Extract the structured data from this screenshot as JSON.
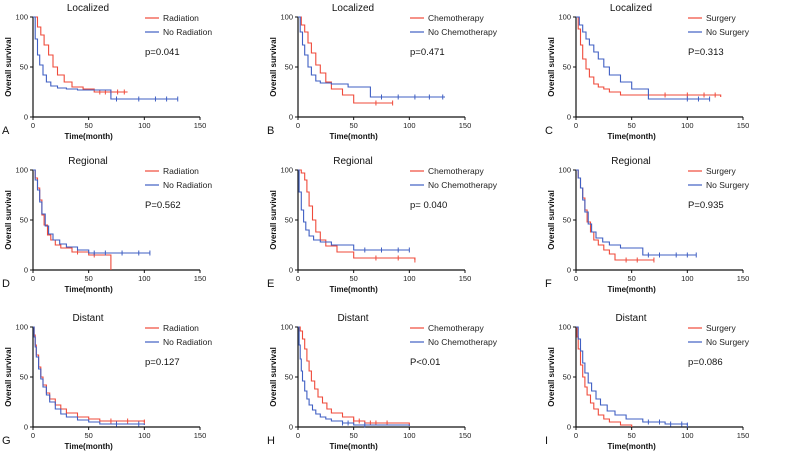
{
  "colors": {
    "treated": "#ef4a3a",
    "untreated": "#3f5fc3",
    "axis": "#111111"
  },
  "chart_data": [
    {
      "type": "line",
      "panel": "A",
      "title": "Localized",
      "xlabel": "Time(month)",
      "ylabel": "Overall survival",
      "xlim": [
        0,
        150
      ],
      "ylim": [
        0,
        100
      ],
      "xticks": [
        0,
        50,
        100,
        150
      ],
      "yticks": [
        0,
        50,
        100
      ],
      "pvalue": "p=0.041",
      "series": [
        {
          "name": "Radiation",
          "role": "treated",
          "x": [
            0,
            4,
            7,
            10,
            14,
            18,
            22,
            28,
            35,
            45,
            55,
            85
          ],
          "y": [
            100,
            90,
            82,
            72,
            62,
            50,
            42,
            35,
            30,
            28,
            25,
            25
          ],
          "censor_x": [
            60,
            65,
            70,
            76,
            82
          ]
        },
        {
          "name": "No Radiation",
          "role": "untreated",
          "x": [
            0,
            2,
            4,
            6,
            9,
            12,
            16,
            22,
            30,
            40,
            70,
            130
          ],
          "y": [
            100,
            78,
            62,
            52,
            42,
            35,
            31,
            29,
            28,
            27,
            18,
            18
          ],
          "censor_x": [
            75,
            95,
            110,
            120,
            130
          ]
        }
      ]
    },
    {
      "type": "line",
      "panel": "B",
      "title": "Localized",
      "xlabel": "Time(month)",
      "ylabel": "Overall survival",
      "xlim": [
        0,
        150
      ],
      "ylim": [
        0,
        100
      ],
      "xticks": [
        0,
        50,
        100,
        150
      ],
      "yticks": [
        0,
        50,
        100
      ],
      "pvalue": "p=0.471",
      "series": [
        {
          "name": "Chemotherapy",
          "role": "treated",
          "x": [
            0,
            3,
            6,
            9,
            12,
            16,
            20,
            25,
            30,
            40,
            50,
            85
          ],
          "y": [
            100,
            92,
            85,
            74,
            64,
            52,
            44,
            35,
            28,
            22,
            14,
            14
          ],
          "censor_x": [
            70,
            85
          ]
        },
        {
          "name": "No Chemotherapy",
          "role": "untreated",
          "x": [
            0,
            2,
            4,
            6,
            9,
            12,
            16,
            20,
            30,
            45,
            65,
            132
          ],
          "y": [
            100,
            85,
            72,
            62,
            50,
            42,
            36,
            34,
            33,
            30,
            20,
            20
          ],
          "censor_x": [
            75,
            90,
            105,
            118,
            130
          ]
        }
      ]
    },
    {
      "type": "line",
      "panel": "C",
      "title": "Localized",
      "xlabel": "Time(month)",
      "ylabel": "Overall survival",
      "xlim": [
        0,
        150
      ],
      "ylim": [
        0,
        100
      ],
      "xticks": [
        0,
        50,
        100,
        150
      ],
      "yticks": [
        0,
        50,
        100
      ],
      "pvalue": "P=0.313",
      "series": [
        {
          "name": "Surgery",
          "role": "treated",
          "x": [
            0,
            2,
            4,
            6,
            9,
            12,
            16,
            20,
            25,
            30,
            40,
            130
          ],
          "y": [
            100,
            88,
            72,
            58,
            48,
            40,
            33,
            30,
            28,
            25,
            22,
            20
          ],
          "censor_x": [
            80,
            100,
            115,
            125
          ]
        },
        {
          "name": "No Surgery",
          "role": "untreated",
          "x": [
            0,
            3,
            6,
            9,
            12,
            16,
            20,
            25,
            30,
            40,
            50,
            65,
            120
          ],
          "y": [
            100,
            92,
            85,
            78,
            72,
            65,
            58,
            50,
            42,
            35,
            28,
            18,
            18
          ],
          "censor_x": [
            100,
            110,
            120
          ]
        }
      ]
    },
    {
      "type": "line",
      "panel": "D",
      "title": "Regional",
      "xlabel": "Time(month)",
      "ylabel": "Overall survival",
      "xlim": [
        0,
        150
      ],
      "ylim": [
        0,
        100
      ],
      "xticks": [
        0,
        50,
        100,
        150
      ],
      "yticks": [
        0,
        50,
        100
      ],
      "pvalue": "P=0.562",
      "series": [
        {
          "name": "Radiation",
          "role": "treated",
          "x": [
            0,
            2,
            4,
            6,
            8,
            10,
            13,
            16,
            20,
            25,
            35,
            50,
            70
          ],
          "y": [
            100,
            92,
            82,
            70,
            55,
            45,
            35,
            30,
            25,
            22,
            18,
            15,
            0
          ],
          "censor_x": [
            40,
            55
          ]
        },
        {
          "name": "No Radiation",
          "role": "untreated",
          "x": [
            0,
            2,
            4,
            6,
            8,
            11,
            14,
            18,
            24,
            30,
            40,
            50,
            105
          ],
          "y": [
            100,
            90,
            80,
            68,
            56,
            44,
            36,
            30,
            26,
            23,
            20,
            17,
            17
          ],
          "censor_x": [
            55,
            65,
            80,
            95,
            105
          ]
        }
      ]
    },
    {
      "type": "line",
      "panel": "E",
      "title": "Regional",
      "xlabel": "Time(month)",
      "ylabel": "Overall survival",
      "xlim": [
        0,
        150
      ],
      "ylim": [
        0,
        100
      ],
      "xticks": [
        0,
        50,
        100,
        150
      ],
      "yticks": [
        0,
        50,
        100
      ],
      "pvalue": "p= 0.040",
      "series": [
        {
          "name": "Chemotherapy",
          "role": "treated",
          "x": [
            0,
            3,
            6,
            8,
            10,
            13,
            16,
            20,
            25,
            35,
            50,
            105
          ],
          "y": [
            100,
            97,
            90,
            78,
            64,
            50,
            38,
            30,
            24,
            18,
            12,
            10
          ],
          "censor_x": [
            70,
            90,
            105
          ]
        },
        {
          "name": "No Chemotherapy",
          "role": "untreated",
          "x": [
            0,
            1,
            3,
            5,
            7,
            10,
            14,
            20,
            30,
            50,
            100
          ],
          "y": [
            100,
            78,
            60,
            48,
            40,
            34,
            30,
            28,
            25,
            20,
            20
          ],
          "censor_x": [
            60,
            75,
            90,
            100
          ]
        }
      ]
    },
    {
      "type": "line",
      "panel": "F",
      "title": "Regional",
      "xlabel": "Time(month)",
      "ylabel": "Overall survival",
      "xlim": [
        0,
        150
      ],
      "ylim": [
        0,
        100
      ],
      "xticks": [
        0,
        50,
        100,
        150
      ],
      "yticks": [
        0,
        50,
        100
      ],
      "pvalue": "P=0.935",
      "series": [
        {
          "name": "Surgery",
          "role": "treated",
          "x": [
            0,
            2,
            4,
            6,
            8,
            10,
            13,
            16,
            20,
            25,
            30,
            35,
            70
          ],
          "y": [
            100,
            92,
            82,
            72,
            60,
            48,
            38,
            30,
            25,
            20,
            16,
            10,
            10
          ],
          "censor_x": [
            45,
            55,
            70
          ]
        },
        {
          "name": "No Surgery",
          "role": "untreated",
          "x": [
            0,
            2,
            4,
            6,
            8,
            11,
            14,
            18,
            24,
            30,
            40,
            60,
            108
          ],
          "y": [
            100,
            92,
            82,
            70,
            58,
            46,
            38,
            32,
            28,
            25,
            22,
            15,
            15
          ],
          "censor_x": [
            65,
            75,
            90,
            100,
            108
          ]
        }
      ]
    },
    {
      "type": "line",
      "panel": "G",
      "title": "Distant",
      "xlabel": "Time(month)",
      "ylabel": "Overall survival",
      "xlim": [
        0,
        150
      ],
      "ylim": [
        0,
        100
      ],
      "xticks": [
        0,
        50,
        100,
        150
      ],
      "yticks": [
        0,
        50,
        100
      ],
      "pvalue": "p=0.127",
      "series": [
        {
          "name": "Radiation",
          "role": "treated",
          "x": [
            0,
            1,
            2,
            3,
            5,
            7,
            9,
            12,
            15,
            20,
            25,
            30,
            40,
            50,
            60,
            100
          ],
          "y": [
            100,
            92,
            82,
            72,
            60,
            50,
            42,
            34,
            28,
            22,
            18,
            14,
            10,
            8,
            6,
            5
          ],
          "censor_x": [
            70,
            85,
            100
          ]
        },
        {
          "name": "No Radiation",
          "role": "untreated",
          "x": [
            0,
            1,
            2,
            3,
            5,
            7,
            9,
            12,
            15,
            20,
            25,
            30,
            40,
            50,
            60,
            100
          ],
          "y": [
            100,
            90,
            80,
            70,
            58,
            48,
            40,
            32,
            25,
            18,
            13,
            10,
            7,
            5,
            3,
            2
          ],
          "censor_x": [
            75,
            95
          ]
        }
      ]
    },
    {
      "type": "line",
      "panel": "H",
      "title": "Distant",
      "xlabel": "Time(month)",
      "ylabel": "Overall survival",
      "xlim": [
        0,
        150
      ],
      "ylim": [
        0,
        100
      ],
      "xticks": [
        0,
        50,
        100,
        150
      ],
      "yticks": [
        0,
        50,
        100
      ],
      "pvalue": "P<0.01",
      "series": [
        {
          "name": "Chemotherapy",
          "role": "treated",
          "x": [
            0,
            2,
            4,
            6,
            8,
            10,
            12,
            15,
            18,
            22,
            26,
            30,
            40,
            50,
            60,
            100
          ],
          "y": [
            100,
            96,
            88,
            78,
            66,
            56,
            46,
            38,
            30,
            24,
            18,
            14,
            10,
            6,
            4,
            2
          ],
          "censor_x": [
            50,
            55,
            65,
            70,
            80
          ]
        },
        {
          "name": "No Chemotherapy",
          "role": "untreated",
          "x": [
            0,
            1,
            2,
            3,
            4,
            6,
            8,
            10,
            13,
            16,
            20,
            25,
            30,
            40,
            50,
            100
          ],
          "y": [
            100,
            82,
            68,
            56,
            46,
            36,
            28,
            22,
            17,
            13,
            10,
            8,
            6,
            4,
            2,
            1
          ],
          "censor_x": [
            40,
            45,
            60
          ]
        }
      ]
    },
    {
      "type": "line",
      "panel": "I",
      "title": "Distant",
      "xlabel": "Time(month)",
      "ylabel": "Overall survival",
      "xlim": [
        0,
        150
      ],
      "ylim": [
        0,
        100
      ],
      "xticks": [
        0,
        50,
        100,
        150
      ],
      "yticks": [
        0,
        50,
        100
      ],
      "pvalue": "p=0.086",
      "series": [
        {
          "name": "Surgery",
          "role": "treated",
          "x": [
            0,
            1,
            2,
            4,
            6,
            8,
            10,
            13,
            16,
            20,
            25,
            30,
            40,
            50
          ],
          "y": [
            100,
            90,
            78,
            62,
            50,
            40,
            32,
            24,
            18,
            12,
            8,
            5,
            2,
            0
          ],
          "censor_x": []
        },
        {
          "name": "No Surgery",
          "role": "untreated",
          "x": [
            0,
            2,
            4,
            6,
            8,
            11,
            14,
            18,
            22,
            28,
            35,
            45,
            60,
            80,
            100
          ],
          "y": [
            100,
            88,
            76,
            64,
            54,
            44,
            36,
            28,
            22,
            16,
            12,
            8,
            5,
            3,
            2
          ],
          "censor_x": [
            65,
            75,
            85,
            95,
            100
          ]
        }
      ]
    }
  ]
}
